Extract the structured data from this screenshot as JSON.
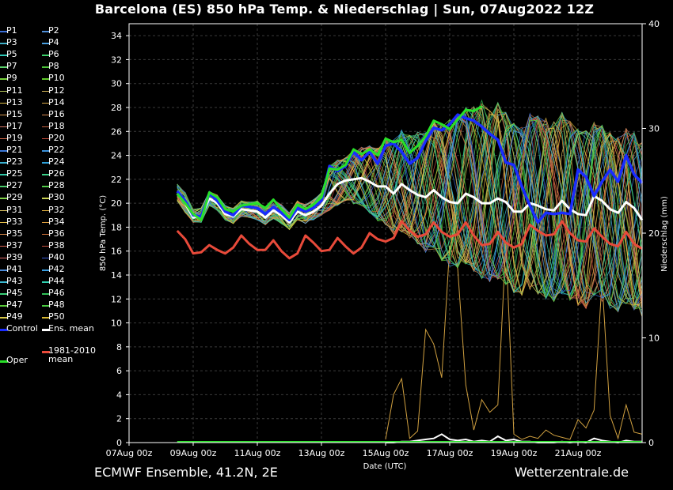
{
  "title": "Barcelona  (ES)  850 hPa Temp. & Niederschlag | Sun, 07Aug2022 12Z",
  "footer": {
    "model": "ECMWF Ensemble, 41.2N, 2E",
    "source": "Wetterzentrale.de"
  },
  "legend": {
    "members": [
      "P1",
      "P2",
      "P3",
      "P4",
      "P5",
      "P6",
      "P7",
      "P8",
      "P9",
      "P10",
      "P11",
      "P12",
      "P13",
      "P14",
      "P15",
      "P16",
      "P17",
      "P18",
      "P19",
      "P20",
      "P21",
      "P22",
      "P23",
      "P24",
      "P25",
      "P26",
      "P27",
      "P28",
      "P29",
      "P30",
      "P31",
      "P32",
      "P33",
      "P34",
      "P35",
      "P36",
      "P37",
      "P38",
      "P39",
      "P40",
      "P41",
      "P42",
      "P43",
      "P44",
      "P45",
      "P46",
      "P47",
      "P48",
      "P49",
      "P50"
    ],
    "member_colors": [
      "#3b6fd8",
      "#4f8ed8",
      "#3fb0c8",
      "#4aa0e0",
      "#2ec9b8",
      "#3ccf6a",
      "#5ad06a",
      "#4cc23a",
      "#78d23c",
      "#5ec928",
      "#b8c85a",
      "#d8b85a",
      "#e0c04a",
      "#d8a848",
      "#d89a50",
      "#d88a50",
      "#d87868",
      "#c86040",
      "#d86a4a",
      "#c84a3a",
      "#3b78d8",
      "#3a90d8",
      "#3ab0d0",
      "#2ea0d8",
      "#30c8a8",
      "#3ad088",
      "#48c868",
      "#50c848",
      "#80d048",
      "#c8d050",
      "#d8c060",
      "#e0b040",
      "#e8c048",
      "#e0a040",
      "#d88848",
      "#d07038",
      "#d86050",
      "#c85040",
      "#e06868",
      "#3a5ad8",
      "#4a8ad8",
      "#3a9ee0",
      "#3ab8d0",
      "#30d0b0",
      "#3ad078",
      "#30c058",
      "#58c838",
      "#48c840",
      "#d8c848",
      "#d8b830"
    ],
    "control_label": "Control",
    "ens_mean_label": "Ens. mean",
    "clim_label_line1": "1981-2010",
    "clim_label_line2": "mean",
    "oper_label": "Oper"
  },
  "chart_data": {
    "type": "line",
    "title": "Barcelona  (ES)  850 hPa Temp. & Niederschlag | Sun, 07Aug2022 12Z",
    "xlabel": "Date (UTC)",
    "ylabel": "850 hPa Temp. (°C)",
    "ylabel_right": "Niederschlag (mm)",
    "x_unit": "days since 07Aug 00z",
    "xlim": [
      0,
      16
    ],
    "ylim": [
      0,
      35
    ],
    "ylim_right": [
      0,
      40
    ],
    "xticks": [
      {
        "x": 0,
        "label": "07Aug 00z"
      },
      {
        "x": 2,
        "label": "09Aug 00z"
      },
      {
        "x": 4,
        "label": "11Aug 00z"
      },
      {
        "x": 6,
        "label": "13Aug 00z"
      },
      {
        "x": 8,
        "label": "15Aug 00z"
      },
      {
        "x": 10,
        "label": "17Aug 00z"
      },
      {
        "x": 12,
        "label": "19Aug 00z"
      },
      {
        "x": 14,
        "label": "21Aug 00z"
      }
    ],
    "yticks": [
      0,
      2,
      4,
      6,
      8,
      10,
      12,
      14,
      16,
      18,
      20,
      22,
      24,
      26,
      28,
      30,
      32,
      34
    ],
    "yticks_right": [
      0,
      10,
      20,
      30,
      40
    ],
    "grid": true,
    "series": [
      {
        "name": "Control",
        "color": "#1a2cff",
        "width": 3.5,
        "x": [
          1.5,
          1.75,
          2,
          2.25,
          2.5,
          2.75,
          3,
          3.25,
          3.5,
          3.75,
          4,
          4.25,
          4.5,
          4.75,
          5,
          5.25,
          5.5,
          5.75,
          6,
          6.25,
          6.5,
          6.75,
          7,
          7.25,
          7.5,
          7.75,
          8,
          8.25,
          8.5,
          8.75,
          9,
          9.25,
          9.5,
          9.75,
          10,
          10.25,
          10.5,
          10.75,
          11,
          11.25,
          11.5,
          11.75,
          12,
          12.25,
          12.5,
          12.75,
          13,
          13.25,
          13.5,
          13.75,
          14,
          14.25,
          14.5,
          14.75,
          15,
          15.25,
          15.5,
          15.75,
          16
        ],
        "y": [
          21,
          20.2,
          19,
          18.9,
          20.8,
          20.2,
          19.3,
          19,
          19.8,
          19.7,
          19.6,
          19.1,
          19.7,
          19.2,
          18.6,
          19.6,
          19.3,
          19.6,
          20.2,
          23.1,
          22.7,
          23.1,
          24.3,
          23.6,
          24.3,
          23.3,
          24.8,
          25,
          24.3,
          23.3,
          23.8,
          25.2,
          26.3,
          26.1,
          26.6,
          27.4,
          27.1,
          26.9,
          26.4,
          25.8,
          25.3,
          23.4,
          23.2,
          21.4,
          19.8,
          18.4,
          19.2,
          19.1,
          19.2,
          19.1,
          22.8,
          22.2,
          20.6,
          21.8,
          22.8,
          21.8,
          24,
          22.4,
          21.7
        ]
      },
      {
        "name": "Oper",
        "color": "#28e028",
        "width": 3,
        "x": [
          1.5,
          1.75,
          2,
          2.25,
          2.5,
          2.75,
          3,
          3.25,
          3.5,
          3.75,
          4,
          4.25,
          4.5,
          4.75,
          5,
          5.25,
          5.5,
          5.75,
          6,
          6.25,
          6.5,
          6.75,
          7,
          7.25,
          7.5,
          7.75,
          8,
          8.25,
          8.5,
          8.75,
          9,
          9.25,
          9.5,
          9.75,
          10,
          10.25,
          10.5,
          10.75,
          11
        ],
        "y": [
          20.8,
          20,
          19.1,
          18.6,
          20.9,
          20.5,
          19.5,
          19.3,
          19.8,
          19.9,
          20,
          19.6,
          20.3,
          19.5,
          18.8,
          19.9,
          19.5,
          19.9,
          20.5,
          22.9,
          22.8,
          23.2,
          24.5,
          24.1,
          24.5,
          24,
          25.4,
          25.1,
          25.3,
          24.2,
          24.8,
          25.6,
          26.9,
          26.6,
          26.2,
          27,
          27.8,
          27.7,
          28.1
        ]
      },
      {
        "name": "Ens. mean",
        "color": "#ffffff",
        "width": 3,
        "x": [
          1.5,
          1.75,
          2,
          2.25,
          2.5,
          2.75,
          3,
          3.25,
          3.5,
          3.75,
          4,
          4.25,
          4.5,
          4.75,
          5,
          5.25,
          5.5,
          5.75,
          6,
          6.25,
          6.5,
          6.75,
          7,
          7.25,
          7.5,
          7.75,
          8,
          8.25,
          8.5,
          8.75,
          9,
          9.25,
          9.5,
          9.75,
          10,
          10.25,
          10.5,
          10.75,
          11,
          11.25,
          11.5,
          11.75,
          12,
          12.25,
          12.5,
          12.75,
          13,
          13.25,
          13.5,
          13.75,
          14,
          14.25,
          14.5,
          14.75,
          15,
          15.25,
          15.5,
          15.75,
          16
        ],
        "y": [
          20.8,
          20,
          18.8,
          18.9,
          20.4,
          20,
          19.1,
          18.9,
          19.5,
          19.4,
          19.3,
          18.8,
          19.4,
          19,
          18.4,
          19.3,
          19,
          19.3,
          19.8,
          20.8,
          21.6,
          21.9,
          22,
          22.1,
          21.8,
          21.4,
          21.4,
          20.8,
          21.6,
          21.1,
          20.7,
          20.5,
          21.1,
          20.5,
          20.1,
          20,
          20.8,
          20.5,
          20,
          20,
          20.4,
          20.1,
          19.3,
          19.3,
          20,
          19.8,
          19.5,
          19.4,
          20.2,
          19.5,
          19.1,
          19,
          20.6,
          20.2,
          19.5,
          19.2,
          20.1,
          19.6,
          18.6
        ]
      },
      {
        "name": "1981-2010 mean",
        "color": "#e84a3a",
        "width": 3,
        "x": [
          1.5,
          1.75,
          2,
          2.25,
          2.5,
          2.75,
          3,
          3.25,
          3.5,
          3.75,
          4,
          4.25,
          4.5,
          4.75,
          5,
          5.25,
          5.5,
          5.75,
          6,
          6.25,
          6.5,
          6.75,
          7,
          7.25,
          7.5,
          7.75,
          8,
          8.25,
          8.5,
          8.75,
          9,
          9.25,
          9.5,
          9.75,
          10,
          10.25,
          10.5,
          10.75,
          11,
          11.25,
          11.5,
          11.75,
          12,
          12.25,
          12.5,
          12.75,
          13,
          13.25,
          13.5,
          13.75,
          14,
          14.25,
          14.5,
          14.75,
          15,
          15.25,
          15.5,
          15.75,
          16
        ],
        "y": [
          17.7,
          17,
          15.8,
          15.9,
          16.5,
          16.1,
          15.8,
          16.3,
          17.3,
          16.6,
          16.1,
          16.1,
          16.9,
          16,
          15.4,
          15.8,
          17.3,
          16.7,
          16,
          16.1,
          17.1,
          16.4,
          15.8,
          16.3,
          17.5,
          17,
          16.8,
          17.1,
          18.5,
          17.7,
          17.2,
          17.4,
          18.4,
          17.6,
          17.2,
          17.4,
          18.4,
          17.3,
          16.5,
          16.6,
          17.6,
          16.7,
          16.3,
          16.6,
          18.2,
          17.7,
          17.3,
          17.4,
          18.5,
          17.5,
          16.9,
          16.8,
          17.9,
          17.2,
          16.6,
          16.4,
          17.6,
          16.6,
          16.2
        ]
      }
    ],
    "ensemble_members": {
      "count": 50,
      "envelope_low": [
        20.2,
        19.2,
        18.4,
        18.4,
        19.8,
        19.4,
        18.6,
        18.3,
        18.9,
        18.8,
        18.6,
        18.2,
        18.7,
        18.3,
        17.8,
        18.6,
        18.3,
        18.6,
        19,
        19.4,
        19.8,
        20.2,
        19.9,
        19.8,
        19.2,
        18.5,
        18.2,
        17.4,
        17.6,
        17.1,
        16.6,
        15.9,
        16.1,
        15.2,
        14.7,
        14.6,
        14.9,
        14.3,
        13.7,
        13.4,
        13.6,
        13.2,
        12.5,
        12.3,
        12.8,
        12.4,
        12,
        11.8,
        12.4,
        11.9,
        11.4,
        11.2,
        12.3,
        11.8,
        11.2,
        10.9,
        11.6,
        11.1,
        10.5
      ],
      "envelope_high": [
        21.6,
        20.9,
        19.5,
        19.6,
        21,
        20.7,
        19.8,
        19.6,
        20.2,
        20.1,
        20.2,
        19.6,
        20.3,
        19.9,
        19.2,
        20.2,
        19.9,
        20.3,
        20.9,
        23.2,
        23.6,
        23.8,
        24.5,
        24.7,
        24.8,
        24.6,
        25.5,
        25.3,
        26.1,
        25.7,
        26,
        25.9,
        26.9,
        26.7,
        27,
        27.3,
        28,
        28.1,
        28.6,
        27.8,
        28.4,
        27.6,
        26.7,
        26.5,
        27.5,
        27.3,
        27.1,
        26.8,
        27.6,
        26.9,
        26.4,
        26.1,
        26.8,
        26.5,
        25.9,
        25.5,
        26.3,
        25.9,
        25.1
      ]
    },
    "precipitation": {
      "unit": "mm",
      "axis": "right",
      "x": [
        8,
        8.25,
        8.5,
        8.75,
        9,
        9.25,
        9.5,
        9.75,
        10,
        10.25,
        10.5,
        10.75,
        11,
        11.25,
        11.5,
        11.75,
        12,
        12.25,
        12.5,
        12.75,
        13,
        13.25,
        13.5,
        13.75,
        14,
        14.25,
        14.5,
        14.75,
        15,
        15.25,
        15.5,
        15.75,
        16
      ],
      "max_member": [
        0.3,
        4.6,
        6.1,
        0.4,
        1.1,
        10.8,
        9.4,
        6.2,
        18.8,
        16.6,
        5.5,
        1.2,
        4.1,
        2.9,
        3.6,
        19.1,
        0.8,
        0.3,
        0.6,
        0.4,
        1.2,
        0.7,
        0.5,
        0.3,
        2.2,
        1.4,
        3.1,
        15.5,
        2.6,
        0.4,
        3.6,
        1,
        0.8
      ],
      "ens_mean": [
        0,
        0,
        0.1,
        0.1,
        0.2,
        0.3,
        0.4,
        0.8,
        0.3,
        0.2,
        0.3,
        0.1,
        0.2,
        0.1,
        0.6,
        0.2,
        0.3,
        0.1,
        0.1,
        0,
        0,
        0,
        0.1,
        0,
        0.1,
        0,
        0.4,
        0.2,
        0.1,
        0,
        0.2,
        0.1,
        0.1
      ]
    }
  }
}
